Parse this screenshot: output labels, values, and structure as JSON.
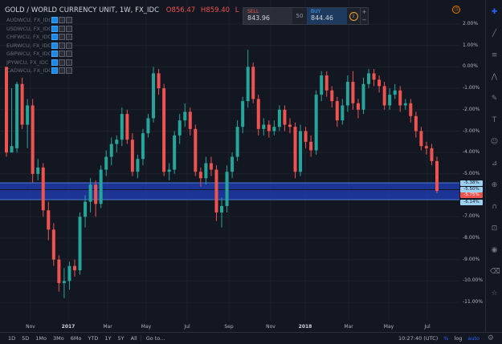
{
  "symbol": {
    "title": "GOLD / WORLD CURRENCY UNIT, 1W, FX_IDC",
    "ohlc": [
      {
        "key": "O",
        "value": "856.47"
      },
      {
        "key": "H",
        "value": "859.40"
      },
      {
        "key": "L",
        "value": ""
      }
    ]
  },
  "legend": {
    "items": [
      {
        "label": "AUDWCU, FX_IDC",
        "active": false
      },
      {
        "label": "USDWCU, FX_IDC",
        "active": false
      },
      {
        "label": "CHFWCU, FX_IDC",
        "active": false
      },
      {
        "label": "EURWCU, FX_IDC",
        "active": false
      },
      {
        "label": "GBPWCU, FX_IDC",
        "active": false
      },
      {
        "label": "JPYWCU, FX_IDC",
        "active": false
      },
      {
        "label": "CADWCU, FX_IDC",
        "active": false
      }
    ]
  },
  "trade": {
    "sell_label": "SELL",
    "sell_price": "843.96",
    "quantity": "50",
    "buy_label": "BUY",
    "buy_price": "844.46",
    "plus": "+",
    "minus": "−"
  },
  "price_scale": {
    "labels": [
      "2.00%",
      "1.00%",
      "0.00%",
      "-1.00%",
      "-2.00%",
      "-3.00%",
      "-4.00%",
      "-5.00%",
      "-6.00%",
      "-7.00%",
      "-8.00%",
      "-9.00%",
      "-10.00%",
      "-11.00%"
    ],
    "tags": [
      {
        "text": "-5.38%",
        "color": "#9ed1f0",
        "text_color": "#131722"
      },
      {
        "text": "-5.50%",
        "color": "#9ed1f0",
        "text_color": "#131722"
      },
      {
        "text": "-5.75%",
        "color": "#ef5350",
        "text_color": "#ffffff"
      },
      {
        "text": "-6.14%",
        "color": "#9ed1f0",
        "text_color": "#131722"
      }
    ]
  },
  "time_axis": {
    "labels": [
      {
        "text": "Nov",
        "bold": false
      },
      {
        "text": "2017",
        "bold": true
      },
      {
        "text": "Mar",
        "bold": false
      },
      {
        "text": "May",
        "bold": false
      },
      {
        "text": "Jul",
        "bold": false
      },
      {
        "text": "Sep",
        "bold": false
      },
      {
        "text": "Nov",
        "bold": false
      },
      {
        "text": "2018",
        "bold": true
      },
      {
        "text": "Mar",
        "bold": false
      },
      {
        "text": "May",
        "bold": false
      },
      {
        "text": "Jul",
        "bold": false
      }
    ]
  },
  "bottom_bar": {
    "ranges": [
      "1D",
      "5D",
      "1Mo",
      "3Mo",
      "6Mo",
      "YTD",
      "1Y",
      "5Y",
      "All"
    ],
    "goto": "Go to...",
    "clock": "10:27:40 (UTC)",
    "percent": "%",
    "log": "log",
    "auto": "auto"
  },
  "colors": {
    "up": "#26a69a",
    "down": "#ef5350",
    "background": "#131722",
    "band": "#1e3aa8"
  },
  "side_icons": [
    "cursor-icon",
    "trend-line-icon",
    "fib-icon",
    "pattern-icon",
    "brush-icon",
    "text-icon",
    "emoji-icon",
    "ruler-icon",
    "zoom-icon",
    "magnet-icon",
    "lock-icon",
    "eye-icon",
    "trash-icon",
    "star-icon"
  ],
  "chart_data": {
    "type": "candlestick",
    "unit": "%",
    "ylim": [
      -11.5,
      2.5
    ],
    "grid": true,
    "candles": [
      [
        0.0,
        -4.0,
        -0.2,
        -4.2
      ],
      [
        -4.0,
        -3.7,
        -1.0,
        -3.8
      ],
      [
        -3.8,
        -0.8,
        -0.7,
        -4.0
      ],
      [
        -0.8,
        -2.7,
        -0.5,
        -2.9
      ],
      [
        -2.7,
        -1.8,
        -1.5,
        -3.8
      ],
      [
        -1.8,
        -5.0,
        -1.5,
        -5.4
      ],
      [
        -5.0,
        -4.7,
        -4.3,
        -5.3
      ],
      [
        -4.7,
        -6.7,
        -4.5,
        -7.0
      ],
      [
        -6.7,
        -7.6,
        -6.3,
        -8.1
      ],
      [
        -7.6,
        -9.0,
        -7.3,
        -9.3
      ],
      [
        -9.0,
        -10.1,
        -8.8,
        -10.5
      ],
      [
        -10.1,
        -10.0,
        -9.4,
        -10.8
      ],
      [
        -10.0,
        -9.3,
        -9.1,
        -10.4
      ],
      [
        -9.3,
        -9.5,
        -9.0,
        -9.8
      ],
      [
        -9.5,
        -7.0,
        -6.8,
        -9.7
      ],
      [
        -7.0,
        -6.3,
        -6.0,
        -7.5
      ],
      [
        -6.3,
        -5.5,
        -5.2,
        -6.8
      ],
      [
        -5.5,
        -6.4,
        -5.3,
        -7.0
      ],
      [
        -6.4,
        -4.8,
        -4.6,
        -6.6
      ],
      [
        -4.8,
        -4.2,
        -3.9,
        -5.1
      ],
      [
        -4.2,
        -3.6,
        -3.3,
        -4.6
      ],
      [
        -3.6,
        -3.4,
        -3.2,
        -4.0
      ],
      [
        -3.4,
        -2.2,
        -1.9,
        -3.7
      ],
      [
        -2.2,
        -3.4,
        -2.0,
        -3.6
      ],
      [
        -3.4,
        -4.9,
        -3.1,
        -5.1
      ],
      [
        -4.9,
        -4.3,
        -4.1,
        -5.2
      ],
      [
        -4.3,
        -3.1,
        -2.9,
        -4.6
      ],
      [
        -3.1,
        -2.4,
        -2.2,
        -3.3
      ],
      [
        -2.4,
        -0.3,
        0.0,
        -2.6
      ],
      [
        -0.3,
        -1.0,
        -0.1,
        -1.3
      ],
      [
        -1.0,
        -4.9,
        -0.8,
        -5.1
      ],
      [
        -4.9,
        -4.8,
        -4.5,
        -5.3
      ],
      [
        -4.8,
        -3.2,
        -3.0,
        -5.0
      ],
      [
        -3.2,
        -2.5,
        -2.2,
        -3.6
      ],
      [
        -2.5,
        -2.1,
        -1.7,
        -2.8
      ],
      [
        -2.1,
        -2.9,
        -1.9,
        -3.2
      ],
      [
        -2.9,
        -4.9,
        -2.7,
        -5.1
      ],
      [
        -4.9,
        -5.2,
        -4.7,
        -5.6
      ],
      [
        -5.2,
        -4.5,
        -4.2,
        -5.5
      ],
      [
        -4.5,
        -4.8,
        -4.2,
        -5.1
      ],
      [
        -4.8,
        -6.8,
        -4.6,
        -7.2
      ],
      [
        -6.8,
        -6.5,
        -6.1,
        -7.5
      ],
      [
        -6.5,
        -4.9,
        -4.6,
        -6.8
      ],
      [
        -4.9,
        -4.2,
        -4.0,
        -5.2
      ],
      [
        -4.2,
        -2.8,
        -2.5,
        -4.4
      ],
      [
        -2.8,
        -1.6,
        -1.4,
        -3.1
      ],
      [
        -1.6,
        0.0,
        0.8,
        -1.9
      ],
      [
        0.0,
        -1.5,
        0.2,
        -1.7
      ],
      [
        -1.5,
        -2.9,
        -1.3,
        -3.2
      ],
      [
        -2.9,
        -2.7,
        -2.4,
        -3.2
      ],
      [
        -2.7,
        -3.0,
        -2.5,
        -3.3
      ],
      [
        -3.0,
        -2.8,
        -2.5,
        -3.2
      ],
      [
        -2.8,
        -2.0,
        -1.8,
        -3.0
      ],
      [
        -2.0,
        -2.7,
        -1.8,
        -3.0
      ],
      [
        -2.7,
        -2.8,
        -2.4,
        -3.1
      ],
      [
        -2.8,
        -4.9,
        -2.6,
        -5.2
      ],
      [
        -4.9,
        -3.0,
        -2.7,
        -5.1
      ],
      [
        -3.0,
        -3.5,
        -2.8,
        -3.8
      ],
      [
        -3.5,
        -3.9,
        -3.2,
        -4.2
      ],
      [
        -3.9,
        -1.3,
        -1.1,
        -4.1
      ],
      [
        -1.3,
        -0.4,
        -0.2,
        -1.6
      ],
      [
        -0.4,
        -1.1,
        -0.2,
        -1.4
      ],
      [
        -1.1,
        -1.6,
        -0.9,
        -1.9
      ],
      [
        -1.6,
        -2.5,
        -1.4,
        -2.8
      ],
      [
        -2.5,
        -1.8,
        -1.5,
        -2.7
      ],
      [
        -1.8,
        -0.7,
        -0.4,
        -2.1
      ],
      [
        -0.7,
        -1.7,
        -0.2,
        -2.0
      ],
      [
        -1.7,
        -2.0,
        -1.5,
        -2.4
      ],
      [
        -2.0,
        -0.8,
        -0.5,
        -2.2
      ],
      [
        -0.8,
        -0.3,
        -0.1,
        -1.0
      ],
      [
        -0.3,
        -0.6,
        -0.1,
        -0.9
      ],
      [
        -0.6,
        -0.9,
        -0.4,
        -1.2
      ],
      [
        -0.9,
        -1.8,
        -0.7,
        -2.0
      ],
      [
        -1.8,
        -1.3,
        -1.0,
        -2.0
      ],
      [
        -1.3,
        -1.1,
        -0.8,
        -1.5
      ],
      [
        -1.1,
        -1.8,
        -0.9,
        -2.1
      ],
      [
        -1.8,
        -1.7,
        -1.5,
        -2.0
      ],
      [
        -1.7,
        -2.3,
        -1.5,
        -2.6
      ],
      [
        -2.3,
        -3.0,
        -2.1,
        -3.3
      ],
      [
        -3.0,
        -3.7,
        -2.8,
        -3.9
      ],
      [
        -3.7,
        -3.8,
        -3.5,
        -4.1
      ],
      [
        -3.8,
        -4.4,
        -3.6,
        -4.6
      ],
      [
        -4.4,
        -5.8,
        -4.2,
        -5.9
      ]
    ]
  }
}
